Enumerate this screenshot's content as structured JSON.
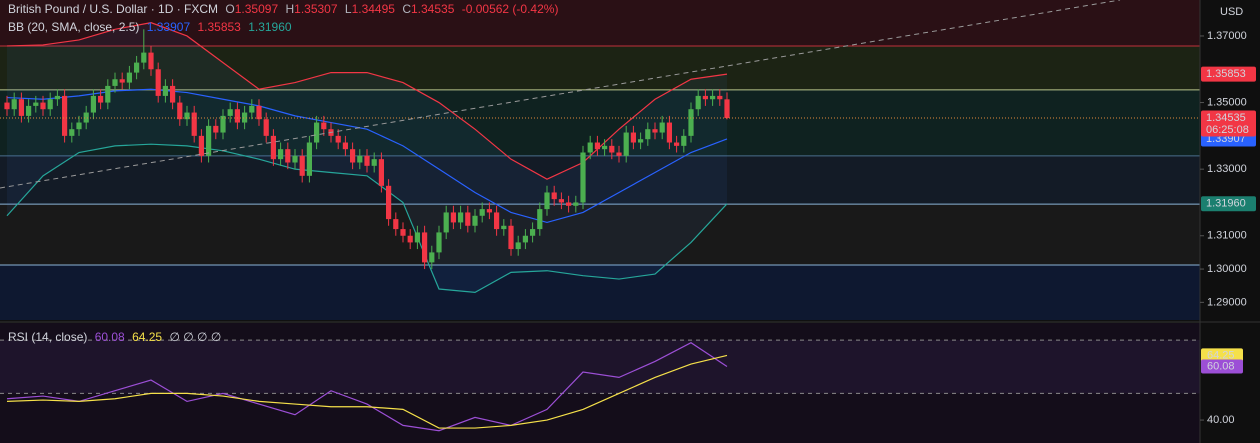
{
  "chart_data": [
    {
      "type": "candlestick",
      "title": "British Pound / U.S. Dollar · 1D · FXCM",
      "ohlc_labels": [
        "O",
        "H",
        "L",
        "C"
      ],
      "change": "-0.00562 (-0.42%)",
      "currency": "USD",
      "countdown": "06:25:08",
      "up_color": "#4caf50",
      "down_color": "#f23645",
      "open": [
        1.35,
        1.348,
        1.351,
        1.346,
        1.349,
        1.35,
        1.348,
        1.351,
        1.352,
        1.34,
        1.342,
        1.344,
        1.347,
        1.352,
        1.35,
        1.355,
        1.357,
        1.356,
        1.359,
        1.362,
        1.365,
        1.36,
        1.352,
        1.355,
        1.35,
        1.345,
        1.347,
        1.34,
        1.334,
        1.343,
        1.341,
        1.346,
        1.348,
        1.344,
        1.347,
        1.349,
        1.345,
        1.34,
        1.333,
        1.336,
        1.332,
        1.334,
        1.328,
        1.338,
        1.344,
        1.342,
        1.34,
        1.338,
        1.336,
        1.332,
        1.334,
        1.331,
        1.333,
        1.325,
        1.315,
        1.312,
        1.31,
        1.308,
        1.311,
        1.302,
        1.305,
        1.311,
        1.317,
        1.314,
        1.317,
        1.313,
        1.316,
        1.318,
        1.317,
        1.312,
        1.313,
        1.306,
        1.308,
        1.31,
        1.312,
        1.318,
        1.323,
        1.321,
        1.32,
        1.319,
        1.32,
        1.335,
        1.338,
        1.336,
        1.337,
        1.335,
        1.334,
        1.341,
        1.338,
        1.339,
        1.342,
        1.341,
        1.344,
        1.338,
        1.337,
        1.34,
        1.348,
        1.352,
        1.351,
        1.352,
        1.35097
      ],
      "high": [
        1.352,
        1.353,
        1.353,
        1.351,
        1.352,
        1.352,
        1.353,
        1.354,
        1.354,
        1.344,
        1.346,
        1.349,
        1.354,
        1.354,
        1.357,
        1.359,
        1.359,
        1.361,
        1.364,
        1.372,
        1.367,
        1.362,
        1.357,
        1.357,
        1.352,
        1.349,
        1.349,
        1.342,
        1.345,
        1.345,
        1.348,
        1.35,
        1.35,
        1.349,
        1.351,
        1.351,
        1.347,
        1.342,
        1.338,
        1.338,
        1.336,
        1.336,
        1.34,
        1.346,
        1.346,
        1.344,
        1.342,
        1.34,
        1.338,
        1.336,
        1.336,
        1.335,
        1.335,
        1.327,
        1.317,
        1.314,
        1.312,
        1.313,
        1.313,
        1.307,
        1.313,
        1.319,
        1.319,
        1.319,
        1.319,
        1.318,
        1.32,
        1.32,
        1.319,
        1.315,
        1.315,
        1.31,
        1.312,
        1.314,
        1.32,
        1.325,
        1.325,
        1.323,
        1.322,
        1.322,
        1.337,
        1.34,
        1.34,
        1.339,
        1.339,
        1.337,
        1.343,
        1.343,
        1.341,
        1.344,
        1.344,
        1.346,
        1.346,
        1.34,
        1.342,
        1.35,
        1.354,
        1.354,
        1.354,
        1.354,
        1.35307
      ],
      "low": [
        1.346,
        1.346,
        1.344,
        1.344,
        1.347,
        1.346,
        1.346,
        1.349,
        1.338,
        1.338,
        1.34,
        1.342,
        1.345,
        1.348,
        1.348,
        1.353,
        1.354,
        1.354,
        1.357,
        1.36,
        1.358,
        1.35,
        1.35,
        1.348,
        1.343,
        1.343,
        1.338,
        1.332,
        1.332,
        1.339,
        1.339,
        1.344,
        1.342,
        1.342,
        1.345,
        1.343,
        1.338,
        1.331,
        1.331,
        1.33,
        1.33,
        1.326,
        1.326,
        1.336,
        1.34,
        1.338,
        1.336,
        1.334,
        1.33,
        1.33,
        1.329,
        1.329,
        1.323,
        1.313,
        1.31,
        1.308,
        1.306,
        1.306,
        1.3,
        1.3,
        1.303,
        1.309,
        1.312,
        1.312,
        1.311,
        1.311,
        1.314,
        1.315,
        1.31,
        1.31,
        1.304,
        1.304,
        1.306,
        1.308,
        1.31,
        1.316,
        1.319,
        1.318,
        1.317,
        1.317,
        1.318,
        1.333,
        1.334,
        1.334,
        1.333,
        1.332,
        1.332,
        1.336,
        1.336,
        1.337,
        1.339,
        1.339,
        1.336,
        1.335,
        1.335,
        1.338,
        1.346,
        1.349,
        1.349,
        1.349,
        1.34495
      ],
      "close": [
        1.348,
        1.351,
        1.346,
        1.349,
        1.35,
        1.348,
        1.351,
        1.352,
        1.34,
        1.342,
        1.344,
        1.347,
        1.352,
        1.35,
        1.355,
        1.357,
        1.356,
        1.359,
        1.362,
        1.365,
        1.36,
        1.352,
        1.355,
        1.35,
        1.345,
        1.347,
        1.34,
        1.334,
        1.343,
        1.341,
        1.346,
        1.348,
        1.344,
        1.347,
        1.349,
        1.345,
        1.34,
        1.333,
        1.336,
        1.332,
        1.334,
        1.328,
        1.338,
        1.344,
        1.342,
        1.34,
        1.338,
        1.336,
        1.332,
        1.334,
        1.331,
        1.333,
        1.325,
        1.315,
        1.312,
        1.31,
        1.308,
        1.311,
        1.302,
        1.305,
        1.311,
        1.317,
        1.314,
        1.317,
        1.313,
        1.316,
        1.318,
        1.317,
        1.312,
        1.313,
        1.306,
        1.308,
        1.31,
        1.312,
        1.318,
        1.323,
        1.321,
        1.32,
        1.319,
        1.32,
        1.335,
        1.338,
        1.336,
        1.337,
        1.335,
        1.334,
        1.341,
        1.338,
        1.339,
        1.342,
        1.341,
        1.344,
        1.338,
        1.337,
        1.34,
        1.348,
        1.352,
        1.351,
        1.352,
        1.351,
        1.34535
      ],
      "ylim": [
        1.2847,
        1.3808
      ],
      "yticks": [
        {
          "value": 1.37,
          "label": "1.37000"
        },
        {
          "value": 1.35,
          "label": "1.35000"
        },
        {
          "value": 1.33,
          "label": "1.33000"
        },
        {
          "value": 1.31,
          "label": "1.31000"
        },
        {
          "value": 1.3,
          "label": "1.30000"
        },
        {
          "value": 1.29,
          "label": "1.29000"
        }
      ],
      "levels": [
        1.367,
        1.3538,
        1.334,
        1.3195,
        1.3012
      ],
      "bands": {
        "title": "BB (20, SMA, close, 2.5)",
        "x": [
          0,
          5,
          10,
          15,
          20,
          25,
          30,
          35,
          40,
          45,
          50,
          55,
          60,
          65,
          70,
          75,
          80,
          85,
          90,
          95,
          100
        ],
        "basis": {
          "color": "#2962ff",
          "label": "1.33907",
          "values": [
            1.3515,
            1.351,
            1.352,
            1.3535,
            1.354,
            1.353,
            1.351,
            1.349,
            1.346,
            1.344,
            1.342,
            1.337,
            1.33,
            1.323,
            1.317,
            1.314,
            1.317,
            1.323,
            1.329,
            1.335,
            1.33907
          ]
        },
        "upper": {
          "color": "#f23645",
          "label": "1.35853",
          "values": [
            1.367,
            1.3673,
            1.3688,
            1.372,
            1.374,
            1.37,
            1.362,
            1.354,
            1.356,
            1.359,
            1.359,
            1.356,
            1.35,
            1.342,
            1.333,
            1.327,
            1.332,
            1.342,
            1.351,
            1.357,
            1.35853
          ]
        },
        "lower": {
          "color": "#26a69a",
          "label": "1.31960",
          "values": [
            1.316,
            1.328,
            1.335,
            1.337,
            1.3375,
            1.337,
            1.3355,
            1.333,
            1.33,
            1.329,
            1.328,
            1.32,
            1.294,
            1.293,
            1.299,
            1.2995,
            1.298,
            1.297,
            1.2985,
            1.308,
            1.3196
          ]
        }
      }
    },
    {
      "type": "line",
      "title": "RSI (14, close)",
      "extra": "∅ ∅ ∅ ∅",
      "x": [
        0,
        5,
        10,
        15,
        20,
        25,
        30,
        35,
        40,
        45,
        50,
        55,
        60,
        65,
        70,
        75,
        80,
        85,
        90,
        95,
        100
      ],
      "series": [
        {
          "color": "#9c4fd6",
          "values": [
            48,
            49,
            47,
            51,
            55,
            47,
            50,
            46,
            42,
            51,
            46,
            38,
            36,
            41,
            38,
            44,
            58,
            56,
            62,
            69,
            60.08
          ]
        },
        {
          "color": "#f5e04a",
          "values": [
            47,
            47.5,
            47,
            48,
            50,
            50,
            49,
            47,
            46,
            45,
            45,
            44,
            37,
            37,
            38,
            40,
            44,
            50,
            56,
            61,
            64.25
          ]
        }
      ],
      "ylim": [
        31.4,
        76.4
      ],
      "yticks": [
        {
          "value": 40,
          "label": "40.00"
        }
      ],
      "levels": [
        70,
        50
      ]
    }
  ]
}
